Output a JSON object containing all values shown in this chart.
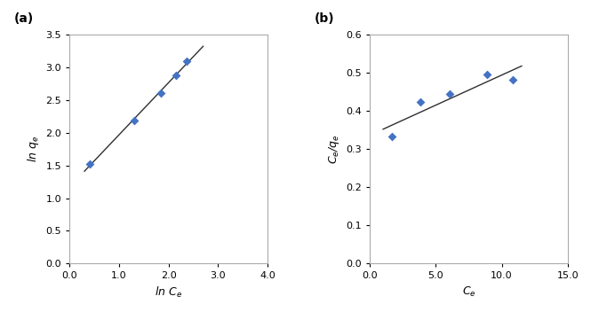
{
  "freundlich": {
    "x": [
      0.405,
      1.305,
      1.845,
      2.145,
      2.36
    ],
    "y": [
      1.52,
      2.18,
      2.6,
      2.875,
      3.09
    ],
    "trendline_x": [
      0.3,
      2.7
    ],
    "xlabel": "ln C$_e$",
    "ylabel": "ln q$_e$",
    "xlim": [
      0.0,
      4.0
    ],
    "ylim": [
      0.0,
      3.5
    ],
    "xticks": [
      0.0,
      1.0,
      2.0,
      3.0,
      4.0
    ],
    "yticks": [
      0.0,
      0.5,
      1.0,
      1.5,
      2.0,
      2.5,
      3.0,
      3.5
    ],
    "label": "(a)"
  },
  "langmuir": {
    "x": [
      1.7,
      3.85,
      6.05,
      8.85,
      10.85
    ],
    "y": [
      0.333,
      0.422,
      0.443,
      0.495,
      0.48
    ],
    "trendline_x": [
      1.0,
      11.5
    ],
    "xlabel": "C$_e$",
    "ylabel": "C$_e$/q$_e$",
    "xlim": [
      0.0,
      14.0
    ],
    "ylim": [
      0.0,
      0.6
    ],
    "xticks": [
      0.0,
      5.0,
      10.0,
      15.0
    ],
    "yticks": [
      0.0,
      0.1,
      0.2,
      0.3,
      0.4,
      0.5,
      0.6
    ],
    "label": "(b)"
  },
  "marker_color": "#4472C4",
  "marker_style": "D",
  "marker_size": 5,
  "line_color": "#2f2f2f",
  "axes_bg": "#ffffff"
}
